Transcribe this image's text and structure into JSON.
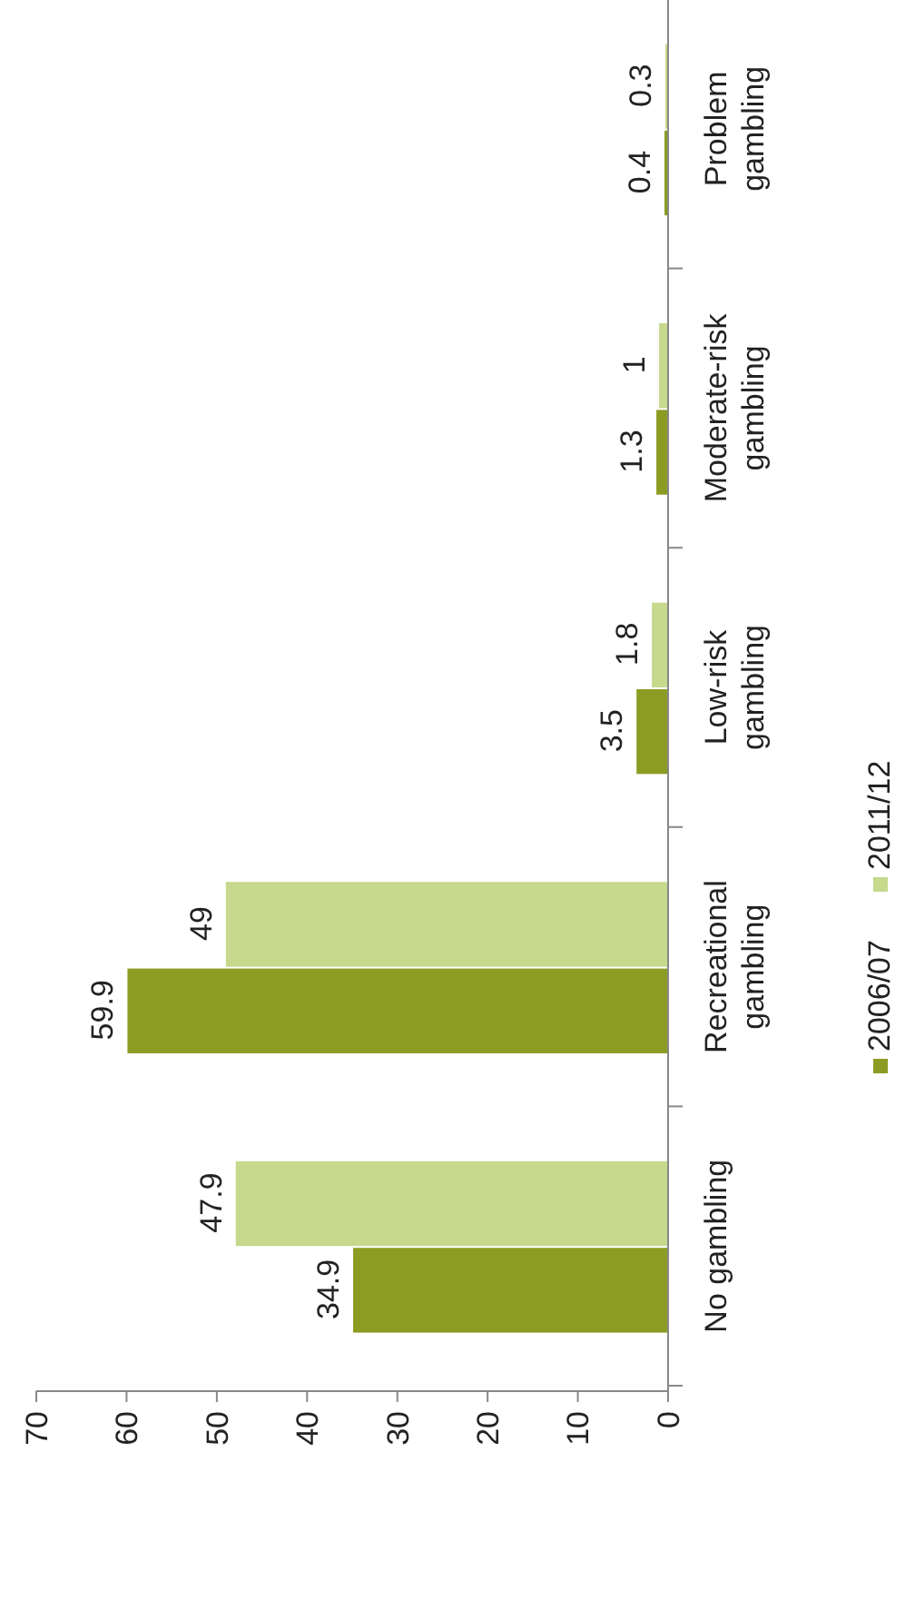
{
  "chart_data": {
    "type": "bar",
    "orientation": "horizontal",
    "categories": [
      "Problem gambling",
      "Moderate-risk gambling",
      "Low-risk gambling",
      "Recreational gambling",
      "No gambling"
    ],
    "series": [
      {
        "name": "2006/07",
        "color": "#8c9c23",
        "values": [
          0.4,
          1.3,
          3.5,
          59.9,
          34.9
        ]
      },
      {
        "name": "2011/12",
        "color": "#c6d98c",
        "values": [
          0.3,
          1,
          1.8,
          49,
          47.9
        ]
      }
    ],
    "xlim": [
      70,
      0
    ],
    "xticks": [
      70,
      60,
      50,
      40,
      30,
      20,
      10,
      0
    ],
    "data_labels": true,
    "legend": "right",
    "grid": false
  }
}
